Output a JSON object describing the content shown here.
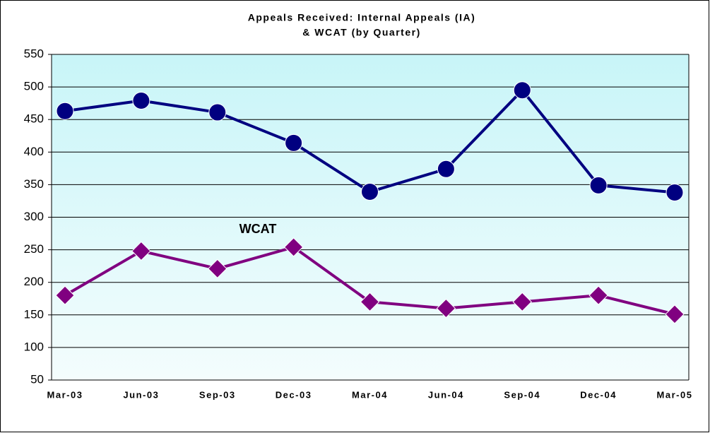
{
  "chart_data": {
    "type": "line",
    "title": [
      "Appeals Received: Internal Appeals (IA)",
      "& WCAT (by Quarter)"
    ],
    "categories": [
      "Mar-03",
      "Jun-03",
      "Sep-03",
      "Dec-03",
      "Mar-04",
      "Jun-04",
      "Sep-04",
      "Dec-04",
      "Mar-05"
    ],
    "series": [
      {
        "color": "#000080",
        "marker": "circle",
        "values": [
          463,
          479,
          461,
          414,
          339,
          374,
          495,
          349,
          338
        ]
      },
      {
        "name": "WCAT",
        "color": "#800080",
        "marker": "diamond",
        "values": [
          180,
          248,
          221,
          254,
          170,
          160,
          170,
          180,
          151
        ]
      }
    ],
    "ylim": [
      50,
      550
    ],
    "yticks": [
      50,
      100,
      150,
      200,
      250,
      300,
      350,
      400,
      450,
      500,
      550
    ],
    "grid": true
  }
}
